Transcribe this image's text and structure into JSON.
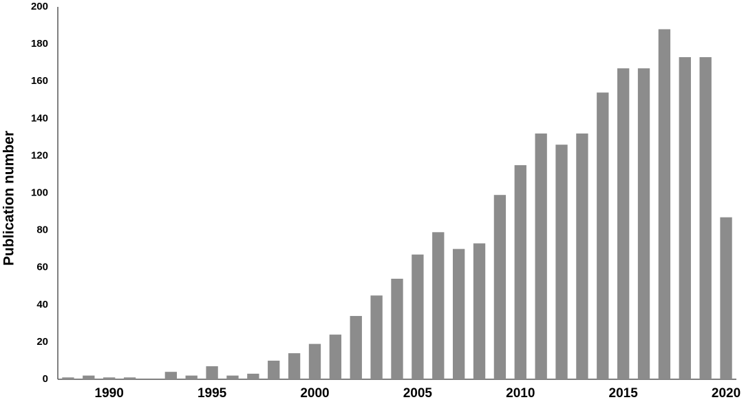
{
  "chart_data": {
    "type": "bar",
    "y_label": "Publication number",
    "categories": [
      null,
      null,
      "1990",
      null,
      null,
      null,
      null,
      "1995",
      null,
      null,
      null,
      null,
      "2000",
      null,
      null,
      null,
      null,
      "2005",
      null,
      null,
      null,
      null,
      "2010",
      null,
      null,
      null,
      null,
      "2015",
      null,
      null,
      null,
      null,
      "2020"
    ],
    "values": [
      1,
      2,
      1,
      1,
      0,
      4,
      2,
      7,
      2,
      3,
      10,
      14,
      19,
      24,
      34,
      45,
      54,
      67,
      79,
      70,
      73,
      99,
      115,
      132,
      126,
      132,
      154,
      167,
      167,
      188,
      173,
      173,
      87
    ],
    "color": "#8c8c8c",
    "ylim": [
      0,
      200
    ],
    "yticks": [
      0,
      20,
      40,
      60,
      80,
      100,
      120,
      140,
      160,
      180,
      200
    ],
    "grid": false
  }
}
